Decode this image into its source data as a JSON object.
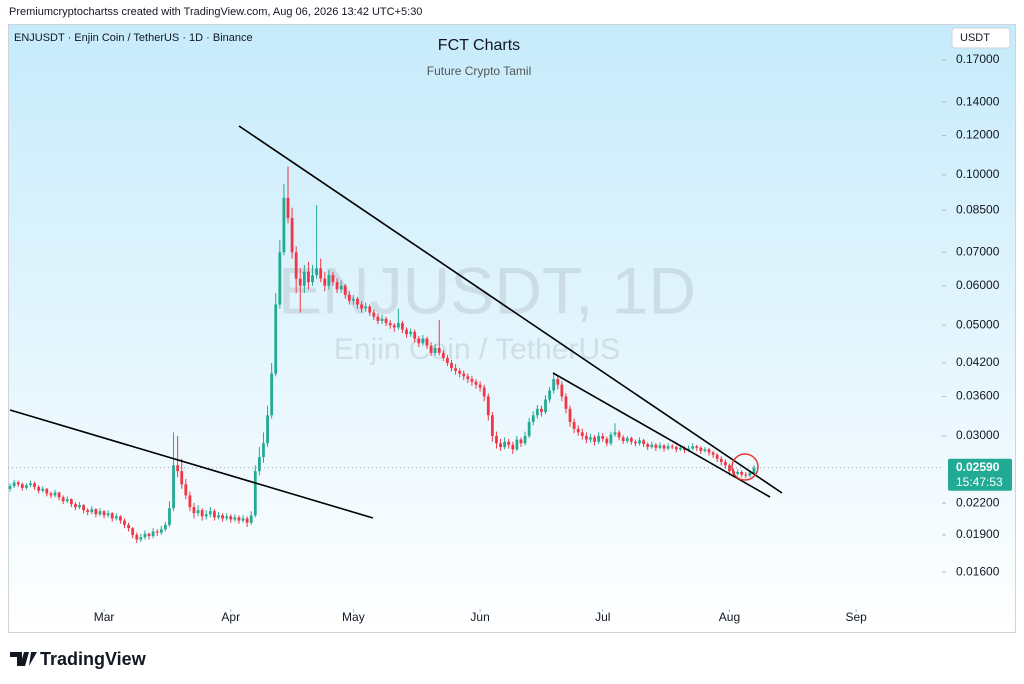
{
  "header": "Premiumcryptochartss created with TradingView.com, Aug 06, 2026 13:42 UTC+5:30",
  "footer": {
    "logo": "TradingView"
  },
  "chart_data": {
    "type": "candlestick",
    "symbol": "ENJUSDT · Enjin Coin / TetherUS · 1D · Binance",
    "title": "FCT Charts",
    "subtitle": "Future Crypto Tamil",
    "watermark": [
      "ENJUSDT, 1D",
      "Enjin Coin / TetherUS"
    ],
    "currency": "USDT",
    "log_scale": true,
    "up_color": "#22ab94",
    "down_color": "#f23645",
    "last_price": {
      "value": 0.0259,
      "label": "0.02590"
    },
    "countdown": "15:47:53",
    "ylim": [
      0.01375,
      0.1998
    ],
    "yticks": [
      {
        "value": 0.17,
        "label": "0.17000"
      },
      {
        "value": 0.14,
        "label": "0.14000"
      },
      {
        "value": 0.12,
        "label": "0.12000"
      },
      {
        "value": 0.1,
        "label": "0.10000"
      },
      {
        "value": 0.085,
        "label": "0.08500"
      },
      {
        "value": 0.07,
        "label": "0.07000"
      },
      {
        "value": 0.06,
        "label": "0.06000"
      },
      {
        "value": 0.05,
        "label": "0.05000"
      },
      {
        "value": 0.042,
        "label": "0.04200"
      },
      {
        "value": 0.036,
        "label": "0.03600"
      },
      {
        "value": 0.03,
        "label": "0.03000"
      },
      {
        "value": 0.022,
        "label": "0.02200"
      },
      {
        "value": 0.019,
        "label": "0.01900"
      },
      {
        "value": 0.016,
        "label": "0.01600"
      }
    ],
    "xlim": [
      -0.5,
      228
    ],
    "xticks": [
      {
        "value": 23,
        "label": "Mar"
      },
      {
        "value": 54,
        "label": "Apr"
      },
      {
        "value": 84,
        "label": "May"
      },
      {
        "value": 115,
        "label": "Jun"
      },
      {
        "value": 145,
        "label": "Jul"
      },
      {
        "value": 176,
        "label": "Aug"
      },
      {
        "value": 207,
        "label": "Sep"
      }
    ],
    "candles": [
      [
        0.0235,
        0.0241,
        0.0232,
        0.0238
      ],
      [
        0.0238,
        0.0245,
        0.0236,
        0.0242
      ],
      [
        0.0242,
        0.0244,
        0.0237,
        0.024
      ],
      [
        0.024,
        0.0242,
        0.0233,
        0.0236
      ],
      [
        0.0236,
        0.0241,
        0.0234,
        0.0239
      ],
      [
        0.0239,
        0.0244,
        0.0237,
        0.0241
      ],
      [
        0.0241,
        0.0243,
        0.0234,
        0.0237
      ],
      [
        0.0237,
        0.0239,
        0.023,
        0.0233
      ],
      [
        0.0233,
        0.0238,
        0.0231,
        0.0235
      ],
      [
        0.0235,
        0.0236,
        0.0227,
        0.023
      ],
      [
        0.023,
        0.0232,
        0.0225,
        0.0228
      ],
      [
        0.0228,
        0.0234,
        0.0226,
        0.0231
      ],
      [
        0.0231,
        0.0232,
        0.0223,
        0.0226
      ],
      [
        0.0226,
        0.0228,
        0.0219,
        0.0222
      ],
      [
        0.0222,
        0.0227,
        0.022,
        0.0224
      ],
      [
        0.0224,
        0.0225,
        0.0216,
        0.0219
      ],
      [
        0.0219,
        0.0221,
        0.0213,
        0.0216
      ],
      [
        0.0216,
        0.0221,
        0.0214,
        0.0218
      ],
      [
        0.0218,
        0.0219,
        0.021,
        0.0213
      ],
      [
        0.0213,
        0.0215,
        0.0208,
        0.0211
      ],
      [
        0.0211,
        0.0217,
        0.0209,
        0.0214
      ],
      [
        0.0214,
        0.0215,
        0.0206,
        0.0209
      ],
      [
        0.0209,
        0.0215,
        0.0207,
        0.0212
      ],
      [
        0.0212,
        0.0213,
        0.0205,
        0.0208
      ],
      [
        0.0208,
        0.0213,
        0.0206,
        0.021
      ],
      [
        0.021,
        0.0211,
        0.0202,
        0.0205
      ],
      [
        0.0205,
        0.021,
        0.0203,
        0.0207
      ],
      [
        0.0207,
        0.0208,
        0.02,
        0.0203
      ],
      [
        0.0203,
        0.0205,
        0.0196,
        0.0199
      ],
      [
        0.0199,
        0.0201,
        0.0193,
        0.0196
      ],
      [
        0.0196,
        0.0197,
        0.0187,
        0.019
      ],
      [
        0.019,
        0.0192,
        0.0183,
        0.0186
      ],
      [
        0.0186,
        0.0191,
        0.0184,
        0.0188
      ],
      [
        0.0188,
        0.0194,
        0.0186,
        0.0191
      ],
      [
        0.0191,
        0.0192,
        0.0186,
        0.0189
      ],
      [
        0.0189,
        0.0196,
        0.0187,
        0.0193
      ],
      [
        0.0193,
        0.0195,
        0.0189,
        0.0192
      ],
      [
        0.0192,
        0.0198,
        0.019,
        0.0195
      ],
      [
        0.0195,
        0.0202,
        0.0193,
        0.0199
      ],
      [
        0.0199,
        0.0222,
        0.0197,
        0.0215
      ],
      [
        0.0215,
        0.0305,
        0.0212,
        0.0262
      ],
      [
        0.0262,
        0.03,
        0.0248,
        0.0255
      ],
      [
        0.0255,
        0.027,
        0.0235,
        0.024
      ],
      [
        0.024,
        0.0246,
        0.0224,
        0.0228
      ],
      [
        0.0228,
        0.0232,
        0.0212,
        0.0216
      ],
      [
        0.0216,
        0.022,
        0.0205,
        0.021
      ],
      [
        0.021,
        0.0218,
        0.0207,
        0.0213
      ],
      [
        0.0213,
        0.0215,
        0.0203,
        0.0207
      ],
      [
        0.0207,
        0.0213,
        0.0204,
        0.0209
      ],
      [
        0.0209,
        0.0216,
        0.0206,
        0.0212
      ],
      [
        0.0212,
        0.0214,
        0.0203,
        0.0206
      ],
      [
        0.0206,
        0.0211,
        0.0204,
        0.0208
      ],
      [
        0.0208,
        0.021,
        0.0202,
        0.0205
      ],
      [
        0.0205,
        0.021,
        0.0203,
        0.0207
      ],
      [
        0.0207,
        0.0209,
        0.0201,
        0.0204
      ],
      [
        0.0204,
        0.0209,
        0.0202,
        0.0206
      ],
      [
        0.0206,
        0.0208,
        0.02,
        0.0203
      ],
      [
        0.0203,
        0.0208,
        0.0201,
        0.0205
      ],
      [
        0.0205,
        0.0207,
        0.0197,
        0.0201
      ],
      [
        0.0201,
        0.0212,
        0.0199,
        0.0208
      ],
      [
        0.0208,
        0.0262,
        0.0206,
        0.0255
      ],
      [
        0.0255,
        0.0285,
        0.025,
        0.0272
      ],
      [
        0.0272,
        0.0305,
        0.0265,
        0.029
      ],
      [
        0.029,
        0.0345,
        0.0285,
        0.033
      ],
      [
        0.033,
        0.042,
        0.0325,
        0.04
      ],
      [
        0.04,
        0.058,
        0.0395,
        0.055
      ],
      [
        0.055,
        0.074,
        0.054,
        0.07
      ],
      [
        0.07,
        0.096,
        0.069,
        0.09
      ],
      [
        0.09,
        0.104,
        0.08,
        0.082
      ],
      [
        0.082,
        0.086,
        0.068,
        0.07
      ],
      [
        0.07,
        0.072,
        0.058,
        0.062
      ],
      [
        0.062,
        0.065,
        0.053,
        0.06
      ],
      [
        0.06,
        0.066,
        0.058,
        0.064
      ],
      [
        0.064,
        0.067,
        0.059,
        0.061
      ],
      [
        0.061,
        0.066,
        0.06,
        0.063
      ],
      [
        0.063,
        0.087,
        0.062,
        0.065
      ],
      [
        0.065,
        0.068,
        0.061,
        0.062
      ],
      [
        0.062,
        0.064,
        0.0585,
        0.06
      ],
      [
        0.06,
        0.0645,
        0.059,
        0.063
      ],
      [
        0.063,
        0.064,
        0.06,
        0.061
      ],
      [
        0.061,
        0.062,
        0.058,
        0.059
      ],
      [
        0.059,
        0.0615,
        0.058,
        0.06
      ],
      [
        0.06,
        0.0605,
        0.0565,
        0.0575
      ],
      [
        0.0575,
        0.0585,
        0.055,
        0.056
      ],
      [
        0.056,
        0.0575,
        0.055,
        0.0565
      ],
      [
        0.0565,
        0.057,
        0.054,
        0.055
      ],
      [
        0.055,
        0.0558,
        0.053,
        0.054
      ],
      [
        0.054,
        0.0555,
        0.0532,
        0.0545
      ],
      [
        0.0545,
        0.055,
        0.0522,
        0.053
      ],
      [
        0.053,
        0.0538,
        0.0512,
        0.052
      ],
      [
        0.052,
        0.0528,
        0.0502,
        0.051
      ],
      [
        0.051,
        0.0525,
        0.0503,
        0.0515
      ],
      [
        0.0515,
        0.052,
        0.0498,
        0.0505
      ],
      [
        0.0505,
        0.0512,
        0.0492,
        0.05
      ],
      [
        0.05,
        0.0505,
        0.0485,
        0.0495
      ],
      [
        0.0495,
        0.054,
        0.049,
        0.0505
      ],
      [
        0.0505,
        0.051,
        0.0482,
        0.049
      ],
      [
        0.049,
        0.0495,
        0.0472,
        0.048
      ],
      [
        0.048,
        0.0492,
        0.0474,
        0.0485
      ],
      [
        0.0485,
        0.049,
        0.0462,
        0.047
      ],
      [
        0.047,
        0.0476,
        0.0452,
        0.046
      ],
      [
        0.046,
        0.0478,
        0.0455,
        0.047
      ],
      [
        0.047,
        0.0474,
        0.0448,
        0.0455
      ],
      [
        0.0455,
        0.0462,
        0.0434,
        0.044
      ],
      [
        0.044,
        0.0458,
        0.0435,
        0.045
      ],
      [
        0.045,
        0.0512,
        0.0435,
        0.044
      ],
      [
        0.044,
        0.0446,
        0.0424,
        0.043
      ],
      [
        0.043,
        0.0436,
        0.0414,
        0.042
      ],
      [
        0.042,
        0.0426,
        0.0404,
        0.041
      ],
      [
        0.041,
        0.0418,
        0.0398,
        0.0405
      ],
      [
        0.0405,
        0.041,
        0.0393,
        0.04
      ],
      [
        0.04,
        0.0406,
        0.0388,
        0.0395
      ],
      [
        0.0395,
        0.04,
        0.0383,
        0.039
      ],
      [
        0.039,
        0.0396,
        0.0378,
        0.0385
      ],
      [
        0.0385,
        0.039,
        0.0373,
        0.038
      ],
      [
        0.038,
        0.0386,
        0.0368,
        0.0375
      ],
      [
        0.0375,
        0.038,
        0.0352,
        0.036
      ],
      [
        0.036,
        0.0365,
        0.0322,
        0.033
      ],
      [
        0.033,
        0.0335,
        0.0292,
        0.03
      ],
      [
        0.03,
        0.0306,
        0.0283,
        0.029
      ],
      [
        0.029,
        0.0296,
        0.028,
        0.0285
      ],
      [
        0.0285,
        0.0298,
        0.0282,
        0.0292
      ],
      [
        0.0292,
        0.0296,
        0.0283,
        0.0288
      ],
      [
        0.0288,
        0.0292,
        0.0276,
        0.0282
      ],
      [
        0.0282,
        0.03,
        0.028,
        0.0295
      ],
      [
        0.0295,
        0.0298,
        0.0285,
        0.029
      ],
      [
        0.029,
        0.0306,
        0.0287,
        0.03
      ],
      [
        0.03,
        0.0326,
        0.0297,
        0.032
      ],
      [
        0.032,
        0.0336,
        0.0315,
        0.033
      ],
      [
        0.033,
        0.0346,
        0.0325,
        0.034
      ],
      [
        0.034,
        0.0345,
        0.0328,
        0.0335
      ],
      [
        0.0335,
        0.0362,
        0.0332,
        0.0355
      ],
      [
        0.0355,
        0.0376,
        0.035,
        0.037
      ],
      [
        0.037,
        0.0402,
        0.0365,
        0.039
      ],
      [
        0.039,
        0.0396,
        0.0372,
        0.038
      ],
      [
        0.038,
        0.0386,
        0.0352,
        0.036
      ],
      [
        0.036,
        0.0365,
        0.0333,
        0.034
      ],
      [
        0.034,
        0.0345,
        0.0313,
        0.032
      ],
      [
        0.032,
        0.0325,
        0.0304,
        0.031
      ],
      [
        0.031,
        0.0315,
        0.03,
        0.0305
      ],
      [
        0.0305,
        0.031,
        0.0295,
        0.03
      ],
      [
        0.03,
        0.0305,
        0.029,
        0.0295
      ],
      [
        0.0295,
        0.0303,
        0.0291,
        0.0298
      ],
      [
        0.0298,
        0.0301,
        0.0287,
        0.0292
      ],
      [
        0.0292,
        0.0305,
        0.0289,
        0.03
      ],
      [
        0.03,
        0.0304,
        0.0292,
        0.0296
      ],
      [
        0.0296,
        0.0299,
        0.0286,
        0.029
      ],
      [
        0.029,
        0.0306,
        0.0287,
        0.0302
      ],
      [
        0.0302,
        0.0318,
        0.0299,
        0.0305
      ],
      [
        0.0305,
        0.0308,
        0.0294,
        0.0298
      ],
      [
        0.0298,
        0.0301,
        0.0289,
        0.0293
      ],
      [
        0.0293,
        0.03,
        0.029,
        0.0297
      ],
      [
        0.0297,
        0.0299,
        0.0288,
        0.0292
      ],
      [
        0.0292,
        0.0295,
        0.0286,
        0.029
      ],
      [
        0.029,
        0.0298,
        0.0287,
        0.0294
      ],
      [
        0.0294,
        0.0296,
        0.0285,
        0.0289
      ],
      [
        0.0289,
        0.0291,
        0.0281,
        0.0285
      ],
      [
        0.0285,
        0.0292,
        0.0283,
        0.0288
      ],
      [
        0.0288,
        0.029,
        0.028,
        0.0284
      ],
      [
        0.0284,
        0.0291,
        0.0282,
        0.0287
      ],
      [
        0.0287,
        0.0289,
        0.0279,
        0.0283
      ],
      [
        0.0283,
        0.029,
        0.0281,
        0.0286
      ],
      [
        0.0286,
        0.0289,
        0.0282,
        0.0285
      ],
      [
        0.0285,
        0.0287,
        0.0278,
        0.0282
      ],
      [
        0.0282,
        0.0288,
        0.028,
        0.0284
      ],
      [
        0.0284,
        0.0286,
        0.0277,
        0.0281
      ],
      [
        0.0281,
        0.0287,
        0.0279,
        0.0283
      ],
      [
        0.0283,
        0.029,
        0.0281,
        0.0286
      ],
      [
        0.0286,
        0.0288,
        0.028,
        0.0284
      ],
      [
        0.0284,
        0.0286,
        0.0276,
        0.028
      ],
      [
        0.028,
        0.0285,
        0.0278,
        0.0282
      ],
      [
        0.0282,
        0.0284,
        0.0274,
        0.0278
      ],
      [
        0.0278,
        0.028,
        0.0271,
        0.0275
      ],
      [
        0.0275,
        0.0277,
        0.0266,
        0.027
      ],
      [
        0.027,
        0.0273,
        0.0262,
        0.0266
      ],
      [
        0.0266,
        0.0269,
        0.0258,
        0.0262
      ],
      [
        0.0262,
        0.0264,
        0.025,
        0.0255
      ],
      [
        0.0255,
        0.0258,
        0.0248,
        0.0252
      ],
      [
        0.0252,
        0.0257,
        0.025,
        0.0254
      ],
      [
        0.0254,
        0.0256,
        0.0248,
        0.0251
      ],
      [
        0.0251,
        0.0254,
        0.0247,
        0.025
      ],
      [
        0.025,
        0.0256,
        0.0248,
        0.0253
      ],
      [
        0.0253,
        0.0262,
        0.0251,
        0.0259
      ]
    ]
  }
}
